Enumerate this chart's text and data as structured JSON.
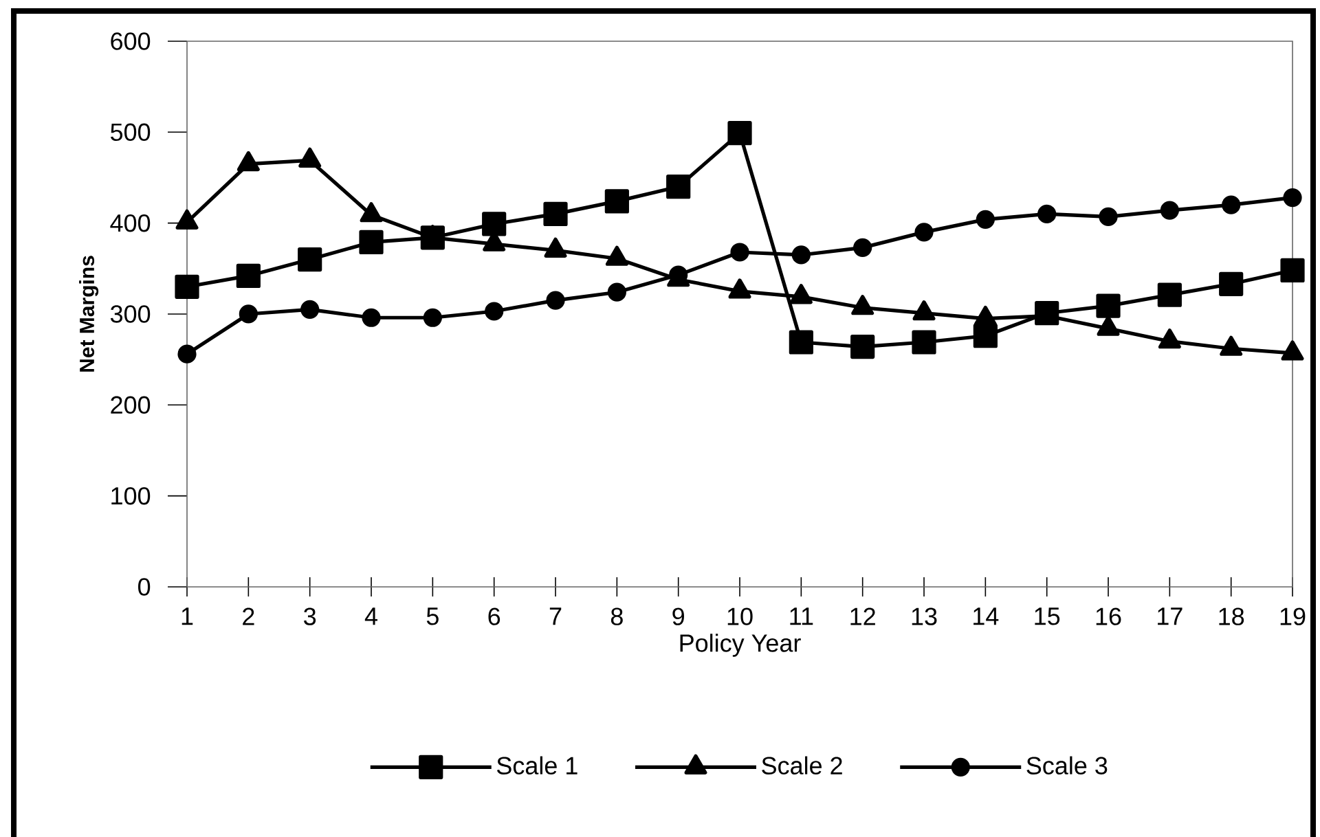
{
  "chart_data": {
    "type": "line",
    "xlabel": "Policy Year",
    "ylabel": "Net Margins",
    "x": [
      1,
      2,
      3,
      4,
      5,
      6,
      7,
      8,
      9,
      10,
      11,
      12,
      13,
      14,
      15,
      16,
      17,
      18,
      19
    ],
    "xlim": [
      1,
      19
    ],
    "xticks": [
      1,
      2,
      3,
      4,
      5,
      6,
      7,
      8,
      9,
      10,
      11,
      12,
      13,
      14,
      15,
      16,
      17,
      18,
      19
    ],
    "ylim": [
      0,
      600
    ],
    "yticks": [
      0,
      100,
      200,
      300,
      400,
      500,
      600
    ],
    "legend": "bottom",
    "series": [
      {
        "name": "Scale 1",
        "color": "#000000",
        "marker": "square",
        "values": [
          330,
          342,
          360,
          379,
          384,
          399,
          410,
          424,
          440,
          499,
          269,
          264,
          269,
          276,
          301,
          309,
          321,
          333,
          348
        ]
      },
      {
        "name": "Scale 2",
        "color": "#000000",
        "marker": "triangle",
        "values": [
          401,
          465,
          469,
          409,
          384,
          377,
          370,
          361,
          338,
          325,
          319,
          307,
          301,
          295,
          298,
          284,
          270,
          262,
          257
        ]
      },
      {
        "name": "Scale 3",
        "color": "#000000",
        "marker": "circle",
        "values": [
          256,
          300,
          305,
          296,
          296,
          303,
          315,
          324,
          343,
          368,
          365,
          373,
          390,
          404,
          410,
          407,
          414,
          420,
          428
        ]
      }
    ]
  }
}
